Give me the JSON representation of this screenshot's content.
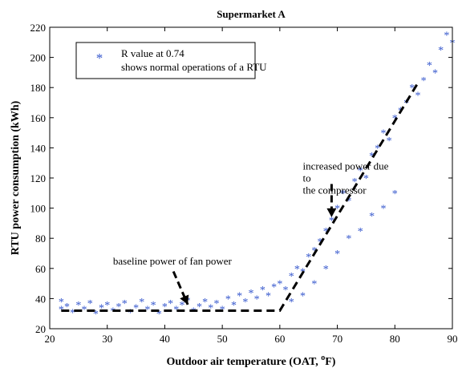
{
  "chart_data": {
    "type": "scatter",
    "title": "Supermarket A",
    "xlabel": "Outdoor air temperature (OAT, ",
    "xlabel_unit_sup": "o",
    "xlabel_unit_end": "F)",
    "ylabel": "RTU power consumption (kWh)",
    "xlim": [
      20,
      90
    ],
    "ylim": [
      20,
      220
    ],
    "x_ticks": [
      "20",
      "30",
      "40",
      "50",
      "60",
      "70",
      "80",
      "90"
    ],
    "y_ticks": [
      "20",
      "40",
      "60",
      "80",
      "100",
      "120",
      "140",
      "160",
      "180",
      "200",
      "220"
    ],
    "grid": false,
    "legend": {
      "position": "top-left",
      "marker": "*",
      "lines": [
        "R value at 0.74",
        "shows normal operations of a RTU"
      ]
    },
    "series": [
      {
        "marker": "*",
        "color": "#3355cc",
        "approx_points": [
          [
            22,
            33
          ],
          [
            22,
            38
          ],
          [
            23,
            35
          ],
          [
            24,
            31
          ],
          [
            25,
            36
          ],
          [
            26,
            33
          ],
          [
            27,
            37
          ],
          [
            28,
            30
          ],
          [
            29,
            34
          ],
          [
            30,
            36
          ],
          [
            31,
            32
          ],
          [
            32,
            35
          ],
          [
            33,
            37
          ],
          [
            34,
            31
          ],
          [
            35,
            34
          ],
          [
            36,
            38
          ],
          [
            37,
            33
          ],
          [
            38,
            36
          ],
          [
            39,
            30
          ],
          [
            40,
            35
          ],
          [
            41,
            37
          ],
          [
            42,
            33
          ],
          [
            43,
            36
          ],
          [
            44,
            39
          ],
          [
            45,
            32
          ],
          [
            46,
            35
          ],
          [
            47,
            38
          ],
          [
            48,
            34
          ],
          [
            49,
            37
          ],
          [
            50,
            33
          ],
          [
            51,
            40
          ],
          [
            52,
            36
          ],
          [
            53,
            42
          ],
          [
            54,
            38
          ],
          [
            55,
            44
          ],
          [
            56,
            40
          ],
          [
            57,
            46
          ],
          [
            58,
            42
          ],
          [
            59,
            48
          ],
          [
            60,
            50
          ],
          [
            61,
            46
          ],
          [
            62,
            55
          ],
          [
            63,
            60
          ],
          [
            64,
            58
          ],
          [
            65,
            68
          ],
          [
            66,
            72
          ],
          [
            67,
            78
          ],
          [
            68,
            85
          ],
          [
            69,
            92
          ],
          [
            70,
            100
          ],
          [
            71,
            110
          ],
          [
            72,
            105
          ],
          [
            73,
            118
          ],
          [
            74,
            125
          ],
          [
            75,
            120
          ],
          [
            76,
            135
          ],
          [
            77,
            140
          ],
          [
            78,
            150
          ],
          [
            79,
            145
          ],
          [
            80,
            160
          ],
          [
            81,
            165
          ],
          [
            82,
            170
          ],
          [
            83,
            180
          ],
          [
            84,
            175
          ],
          [
            85,
            185
          ],
          [
            86,
            195
          ],
          [
            87,
            190
          ],
          [
            88,
            205
          ],
          [
            89,
            215
          ],
          [
            90,
            210
          ],
          [
            62,
            38
          ],
          [
            64,
            42
          ],
          [
            66,
            50
          ],
          [
            68,
            60
          ],
          [
            70,
            70
          ],
          [
            72,
            80
          ],
          [
            74,
            85
          ],
          [
            76,
            95
          ],
          [
            78,
            100
          ],
          [
            80,
            110
          ]
        ]
      }
    ],
    "fit_line": {
      "style": "dashed",
      "color": "#000000",
      "points": [
        [
          22,
          32
        ],
        [
          60,
          32
        ],
        [
          84,
          183
        ]
      ]
    },
    "annotations": [
      {
        "text": "baseline power of fan power",
        "x": 31,
        "y": 62.5,
        "arrow_to": [
          44,
          36
        ]
      },
      {
        "text": "increased power due",
        "x": 64,
        "y": 125.5,
        "arrow_to": [
          69,
          94
        ]
      },
      {
        "text": "to",
        "x": 64,
        "y": 117.5
      },
      {
        "text": "the compressor",
        "x": 64,
        "y": 109.5
      }
    ]
  }
}
